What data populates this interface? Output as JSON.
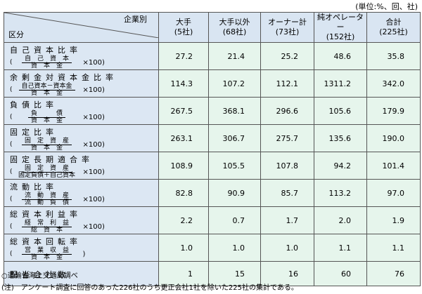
{
  "unit_note": "(単位:%、回、社)",
  "header": {
    "corner_top": "企業別",
    "corner_bottom": "区分",
    "columns": [
      {
        "name": "大手",
        "count": "(5社)"
      },
      {
        "name": "大手以外",
        "count": "(68社)"
      },
      {
        "name": "オーナー計",
        "count": "(73社)"
      },
      {
        "name": "純オペレーター",
        "count": "(152社)"
      },
      {
        "name": "合計",
        "count": "(225社)"
      }
    ]
  },
  "table": {
    "rows": [
      {
        "label": "自己資本比率",
        "formula": {
          "open": "(",
          "numerator": "自　己　資　本",
          "denominator": "資　本　金",
          "close": "×100)"
        },
        "values": [
          "27.2",
          "21.4",
          "25.2",
          "48.6",
          "35.8"
        ]
      },
      {
        "label": "余剰金対資本金比率",
        "formula": {
          "open": "(",
          "numerator": "自己資本－資本金",
          "denominator": "資　本　金",
          "close": "×100)"
        },
        "values": [
          "114.3",
          "107.2",
          "112.1",
          "1311.2",
          "342.0"
        ]
      },
      {
        "label": "負債比率",
        "formula": {
          "open": "(",
          "numerator": "負　　　債",
          "denominator": "資　本　金",
          "close": "×100)"
        },
        "values": [
          "267.5",
          "368.1",
          "296.6",
          "105.6",
          "179.9"
        ]
      },
      {
        "label": "固定比率",
        "formula": {
          "open": "(",
          "numerator": "固　定　資　産",
          "denominator": "資　本　金",
          "close": "×100)"
        },
        "values": [
          "263.1",
          "306.7",
          "275.7",
          "135.6",
          "190.0"
        ]
      },
      {
        "label": "固定長期適合率",
        "formula": {
          "open": "(",
          "numerator": "固　定　資　産",
          "denominator": "固定負債＋自己資本",
          "close": "×100)"
        },
        "values": [
          "108.9",
          "105.5",
          "107.8",
          "94.2",
          "101.4"
        ]
      },
      {
        "label": "流動比率",
        "formula": {
          "open": "(",
          "numerator": "流　動　資　産",
          "denominator": "流　動　負　債",
          "close": "×100)"
        },
        "values": [
          "82.8",
          "90.9",
          "85.7",
          "113.2",
          "97.0"
        ]
      },
      {
        "label": "総資本利益率",
        "formula": {
          "open": "(",
          "numerator": "経　常　利　益",
          "denominator": "総　資　本",
          "close": "×100)"
        },
        "values": [
          "2.2",
          "0.7",
          "1.7",
          "2.0",
          "1.9"
        ]
      },
      {
        "label": "総資本回転率",
        "formula": {
          "open": "(",
          "numerator": "営　業　収　益",
          "denominator": "資　本　金",
          "close": ")"
        },
        "values": [
          "1.0",
          "1.0",
          "1.0",
          "1.1",
          "1.1"
        ]
      },
      {
        "label": "配当会社数",
        "values": [
          "1",
          "15",
          "16",
          "60",
          "76"
        ]
      }
    ]
  },
  "footnotes": [
    "○運輸省海上交通局調べ",
    "(注)　アンケート調査に回答のあった226社のうち更正会社1社を除いた225社の集計である。"
  ]
}
